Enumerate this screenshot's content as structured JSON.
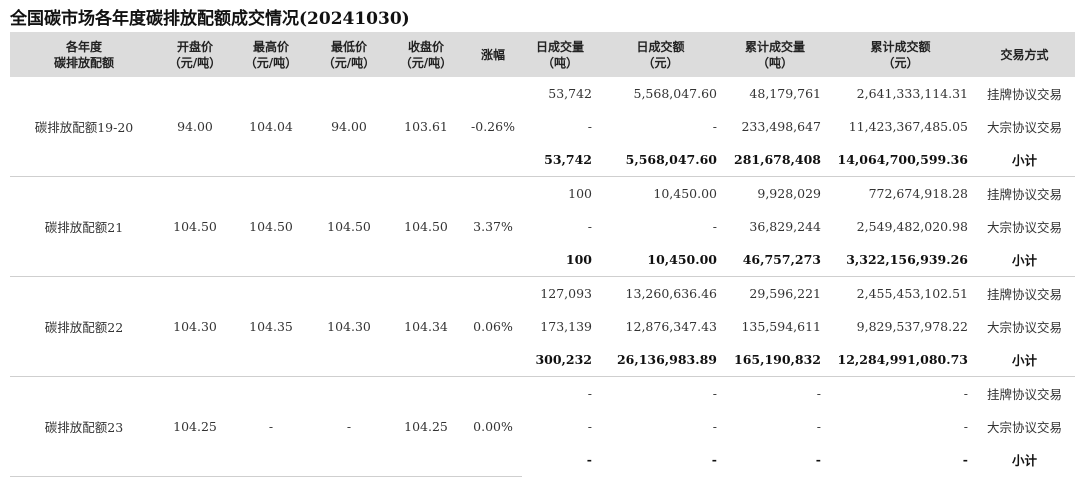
{
  "title": "全国碳市场各年度碳排放配额成交情况(20241030)",
  "headers": [
    [
      "各年度",
      "碳排放配额"
    ],
    [
      "开盘价",
      "（元/吨）"
    ],
    [
      "最高价",
      "（元/吨）"
    ],
    [
      "最低价",
      "（元/吨）"
    ],
    [
      "收盘价",
      "（元/吨）"
    ],
    [
      "涨幅"
    ],
    [
      "日成交量",
      "（吨）"
    ],
    [
      "日成交额",
      "（元）"
    ],
    [
      "累计成交量",
      "（吨）"
    ],
    [
      "累计成交额",
      "（元）"
    ],
    [
      "交易方式"
    ]
  ],
  "groups": [
    {
      "name": "碳排放配额19-20",
      "open": "94.00",
      "high": "104.04",
      "low": "94.00",
      "close": "103.61",
      "change": "-0.26%",
      "rows": [
        {
          "vol": "53,742",
          "amt": "5,568,047.60",
          "cvol": "48,179,761",
          "camt": "2,641,333,114.31",
          "method": "挂牌协议交易"
        },
        {
          "vol": "-",
          "amt": "-",
          "cvol": "233,498,647",
          "camt": "11,423,367,485.05",
          "method": "大宗协议交易"
        },
        {
          "vol": "53,742",
          "amt": "5,568,047.60",
          "cvol": "281,678,408",
          "camt": "14,064,700,599.36",
          "method": "小计"
        }
      ]
    },
    {
      "name": "碳排放配额21",
      "open": "104.50",
      "high": "104.50",
      "low": "104.50",
      "close": "104.50",
      "change": "3.37%",
      "rows": [
        {
          "vol": "100",
          "amt": "10,450.00",
          "cvol": "9,928,029",
          "camt": "772,674,918.28",
          "method": "挂牌协议交易"
        },
        {
          "vol": "-",
          "amt": "-",
          "cvol": "36,829,244",
          "camt": "2,549,482,020.98",
          "method": "大宗协议交易"
        },
        {
          "vol": "100",
          "amt": "10,450.00",
          "cvol": "46,757,273",
          "camt": "3,322,156,939.26",
          "method": "小计"
        }
      ]
    },
    {
      "name": "碳排放配额22",
      "open": "104.30",
      "high": "104.35",
      "low": "104.30",
      "close": "104.34",
      "change": "0.06%",
      "rows": [
        {
          "vol": "127,093",
          "amt": "13,260,636.46",
          "cvol": "29,596,221",
          "camt": "2,455,453,102.51",
          "method": "挂牌协议交易"
        },
        {
          "vol": "173,139",
          "amt": "12,876,347.43",
          "cvol": "135,594,611",
          "camt": "9,829,537,978.22",
          "method": "大宗协议交易"
        },
        {
          "vol": "300,232",
          "amt": "26,136,983.89",
          "cvol": "165,190,832",
          "camt": "12,284,991,080.73",
          "method": "小计"
        }
      ]
    },
    {
      "name": "碳排放配额23",
      "open": "104.25",
      "high": "-",
      "low": "-",
      "close": "104.25",
      "change": "0.00%",
      "rows": [
        {
          "vol": "-",
          "amt": "-",
          "cvol": "-",
          "camt": "-",
          "method": "挂牌协议交易"
        },
        {
          "vol": "-",
          "amt": "-",
          "cvol": "-",
          "camt": "-",
          "method": "大宗协议交易"
        },
        {
          "vol": "-",
          "amt": "-",
          "cvol": "-",
          "camt": "-",
          "method": "小计"
        }
      ]
    }
  ]
}
